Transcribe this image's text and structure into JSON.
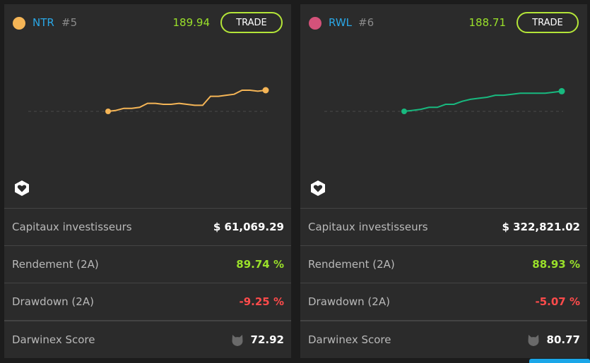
{
  "cards": [
    {
      "ticker": "NTR",
      "rank": "#5",
      "price": "189.94",
      "trade_label": "TRADE",
      "dot_color": "#f5b556",
      "line_color": "#f5b556",
      "chart_values": [
        186.4,
        186.5,
        186.7,
        186.7,
        186.8,
        187.2,
        187.2,
        187.1,
        187.1,
        187.2,
        187.1,
        187.0,
        187.0,
        187.9,
        187.9,
        188.0,
        188.1,
        188.5,
        188.5,
        188.4,
        188.5
      ],
      "favorite_icon": "heart-hexagon-icon",
      "stats": [
        {
          "label": "Capitaux investisseurs",
          "value": "$ 61,069.29",
          "tone": "white"
        },
        {
          "label": "Rendement (2A)",
          "value": "89.74 %",
          "tone": "green"
        },
        {
          "label": "Drawdown (2A)",
          "value": "-9.25 %",
          "tone": "red"
        },
        {
          "label": "Darwinex Score",
          "value": "72.92",
          "tone": "white",
          "icon": "cat-head-icon"
        }
      ]
    },
    {
      "ticker": "RWL",
      "rank": "#6",
      "price": "188.71",
      "trade_label": "TRADE",
      "dot_color": "#d4527a",
      "line_color": "#18b97f",
      "chart_values": [
        186.4,
        186.5,
        186.6,
        186.8,
        186.8,
        187.1,
        187.1,
        187.4,
        187.6,
        187.7,
        187.8,
        188.0,
        188.0,
        188.1,
        188.2,
        188.2,
        188.2,
        188.2,
        188.3,
        188.4
      ],
      "favorite_icon": "heart-hexagon-icon",
      "stats": [
        {
          "label": "Capitaux investisseurs",
          "value": "$ 322,821.02",
          "tone": "white"
        },
        {
          "label": "Rendement (2A)",
          "value": "88.93 %",
          "tone": "green"
        },
        {
          "label": "Drawdown (2A)",
          "value": "-5.07 %",
          "tone": "red"
        },
        {
          "label": "Darwinex Score",
          "value": "80.77",
          "tone": "white",
          "icon": "cat-head-icon"
        }
      ]
    }
  ]
}
